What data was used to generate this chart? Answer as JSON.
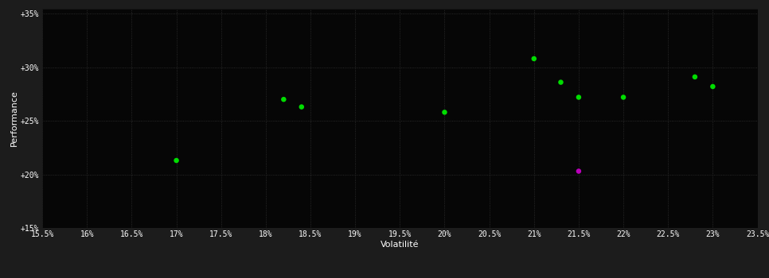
{
  "outer_bg": "#1c1c1c",
  "plot_bg": "#060606",
  "grid_color": "#333333",
  "xlabel": "Volatilité",
  "ylabel": "Performance",
  "xlim": [
    0.155,
    0.235
  ],
  "ylim": [
    0.15,
    0.355
  ],
  "xticks": [
    0.155,
    0.16,
    0.165,
    0.17,
    0.175,
    0.18,
    0.185,
    0.19,
    0.195,
    0.2,
    0.205,
    0.21,
    0.215,
    0.22,
    0.225,
    0.23,
    0.235
  ],
  "yticks": [
    0.15,
    0.2,
    0.25,
    0.3,
    0.35
  ],
  "ytick_labels": [
    "+15%",
    "+20%",
    "+25%",
    "+30%",
    "+35%"
  ],
  "xtick_labels": [
    "15.5%",
    "16%",
    "16.5%",
    "17%",
    "17.5%",
    "18%",
    "18.5%",
    "19%",
    "19.5%",
    "20%",
    "20.5%",
    "21%",
    "21.5%",
    "22%",
    "22.5%",
    "23%",
    "23.5%"
  ],
  "green_points": [
    [
      0.17,
      0.213
    ],
    [
      0.182,
      0.27
    ],
    [
      0.184,
      0.263
    ],
    [
      0.2,
      0.258
    ],
    [
      0.21,
      0.308
    ],
    [
      0.213,
      0.286
    ],
    [
      0.215,
      0.272
    ],
    [
      0.22,
      0.272
    ],
    [
      0.228,
      0.291
    ],
    [
      0.23,
      0.282
    ]
  ],
  "magenta_points": [
    [
      0.215,
      0.203
    ]
  ],
  "green_color": "#00dd00",
  "magenta_color": "#bb00bb",
  "marker_size": 22,
  "tick_color": "#ffffff",
  "label_color": "#ffffff",
  "grid_alpha": 1.0,
  "grid_linestyle": ":",
  "grid_linewidth": 0.6
}
